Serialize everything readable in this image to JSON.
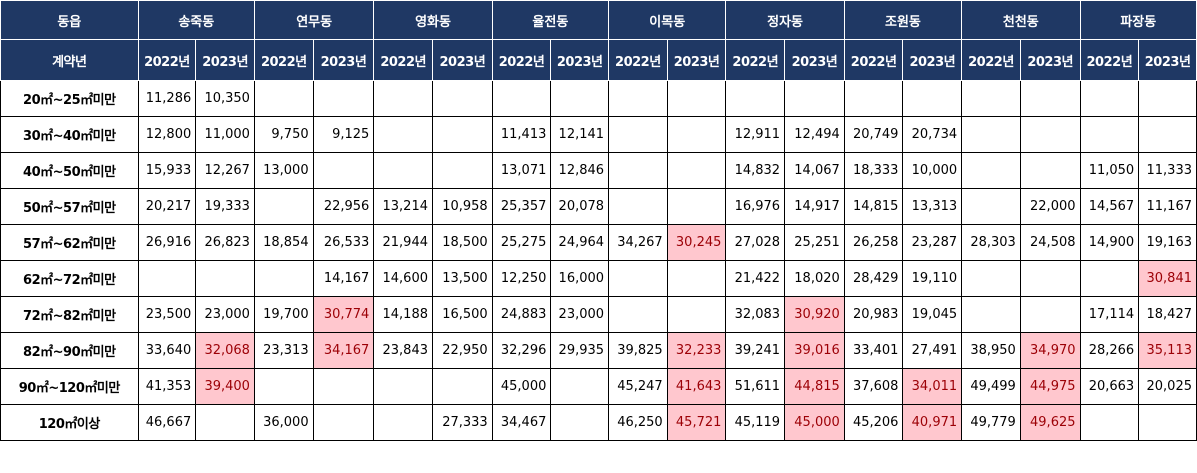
{
  "header": {
    "area_label": "동읍",
    "year_label": "계약년",
    "districts": [
      "송죽동",
      "연무동",
      "영화동",
      "율전동",
      "이목동",
      "정자동",
      "조원동",
      "천천동",
      "파장동"
    ],
    "years": [
      "2022년",
      "2023년"
    ]
  },
  "rows": [
    {
      "label": "20㎡~25㎡미만",
      "cells": [
        "11,286",
        "10,350",
        "",
        "",
        "",
        "",
        "",
        "",
        "",
        "",
        "",
        "",
        "",
        "",
        "",
        "",
        "",
        ""
      ],
      "highlight": []
    },
    {
      "label": "30㎡~40㎡미만",
      "cells": [
        "12,800",
        "11,000",
        "9,750",
        "9,125",
        "",
        "",
        "11,413",
        "12,141",
        "",
        "",
        "12,911",
        "12,494",
        "20,749",
        "20,734",
        "",
        "",
        "",
        ""
      ],
      "highlight": []
    },
    {
      "label": "40㎡~50㎡미만",
      "cells": [
        "15,933",
        "12,267",
        "13,000",
        "",
        "",
        "",
        "13,071",
        "12,846",
        "",
        "",
        "14,832",
        "14,067",
        "18,333",
        "10,000",
        "",
        "",
        "11,050",
        "11,333"
      ],
      "highlight": []
    },
    {
      "label": "50㎡~57㎡미만",
      "cells": [
        "20,217",
        "19,333",
        "",
        "22,956",
        "13,214",
        "10,958",
        "25,357",
        "20,078",
        "",
        "",
        "16,976",
        "14,917",
        "14,815",
        "13,313",
        "",
        "22,000",
        "14,567",
        "11,167"
      ],
      "highlight": []
    },
    {
      "label": "57㎡~62㎡미만",
      "cells": [
        "26,916",
        "26,823",
        "18,854",
        "26,533",
        "21,944",
        "18,500",
        "25,275",
        "24,964",
        "34,267",
        "30,245",
        "27,028",
        "25,251",
        "26,258",
        "23,287",
        "28,303",
        "24,508",
        "14,900",
        "19,163"
      ],
      "highlight": [
        9
      ]
    },
    {
      "label": "62㎡~72㎡미만",
      "cells": [
        "",
        "",
        "",
        "14,167",
        "14,600",
        "13,500",
        "12,250",
        "16,000",
        "",
        "",
        "21,422",
        "18,020",
        "28,429",
        "19,110",
        "",
        "",
        "",
        "30,841"
      ],
      "highlight": [
        17
      ]
    },
    {
      "label": "72㎡~82㎡미만",
      "cells": [
        "23,500",
        "23,000",
        "19,700",
        "30,774",
        "14,188",
        "16,500",
        "24,883",
        "23,000",
        "",
        "",
        "32,083",
        "30,920",
        "20,983",
        "19,045",
        "",
        "",
        "17,114",
        "18,427"
      ],
      "highlight": [
        3,
        11
      ]
    },
    {
      "label": "82㎡~90㎡미만",
      "cells": [
        "33,640",
        "32,068",
        "23,313",
        "34,167",
        "23,843",
        "22,950",
        "32,296",
        "29,935",
        "39,825",
        "32,233",
        "39,241",
        "39,016",
        "33,401",
        "27,491",
        "38,950",
        "34,970",
        "28,266",
        "35,113"
      ],
      "highlight": [
        1,
        3,
        9,
        11,
        15,
        17
      ]
    },
    {
      "label": "90㎡~120㎡미만",
      "cells": [
        "41,353",
        "39,400",
        "",
        "",
        "",
        "",
        "45,000",
        "",
        "45,247",
        "41,643",
        "51,611",
        "44,815",
        "37,608",
        "34,011",
        "49,499",
        "44,975",
        "20,663",
        "20,025"
      ],
      "highlight": [
        1,
        9,
        11,
        13,
        15
      ]
    },
    {
      "label": "120㎡이상",
      "cells": [
        "46,667",
        "",
        "36,000",
        "",
        "",
        "27,333",
        "34,467",
        "",
        "46,250",
        "45,721",
        "45,119",
        "45,000",
        "45,206",
        "40,971",
        "49,779",
        "49,625",
        "",
        ""
      ],
      "highlight": [
        9,
        11,
        13,
        15
      ]
    }
  ],
  "colors": {
    "header_bg": "#1f3864",
    "header_text": "#ffffff",
    "highlight_bg": "#ffc7ce",
    "highlight_text": "#9c0006"
  }
}
